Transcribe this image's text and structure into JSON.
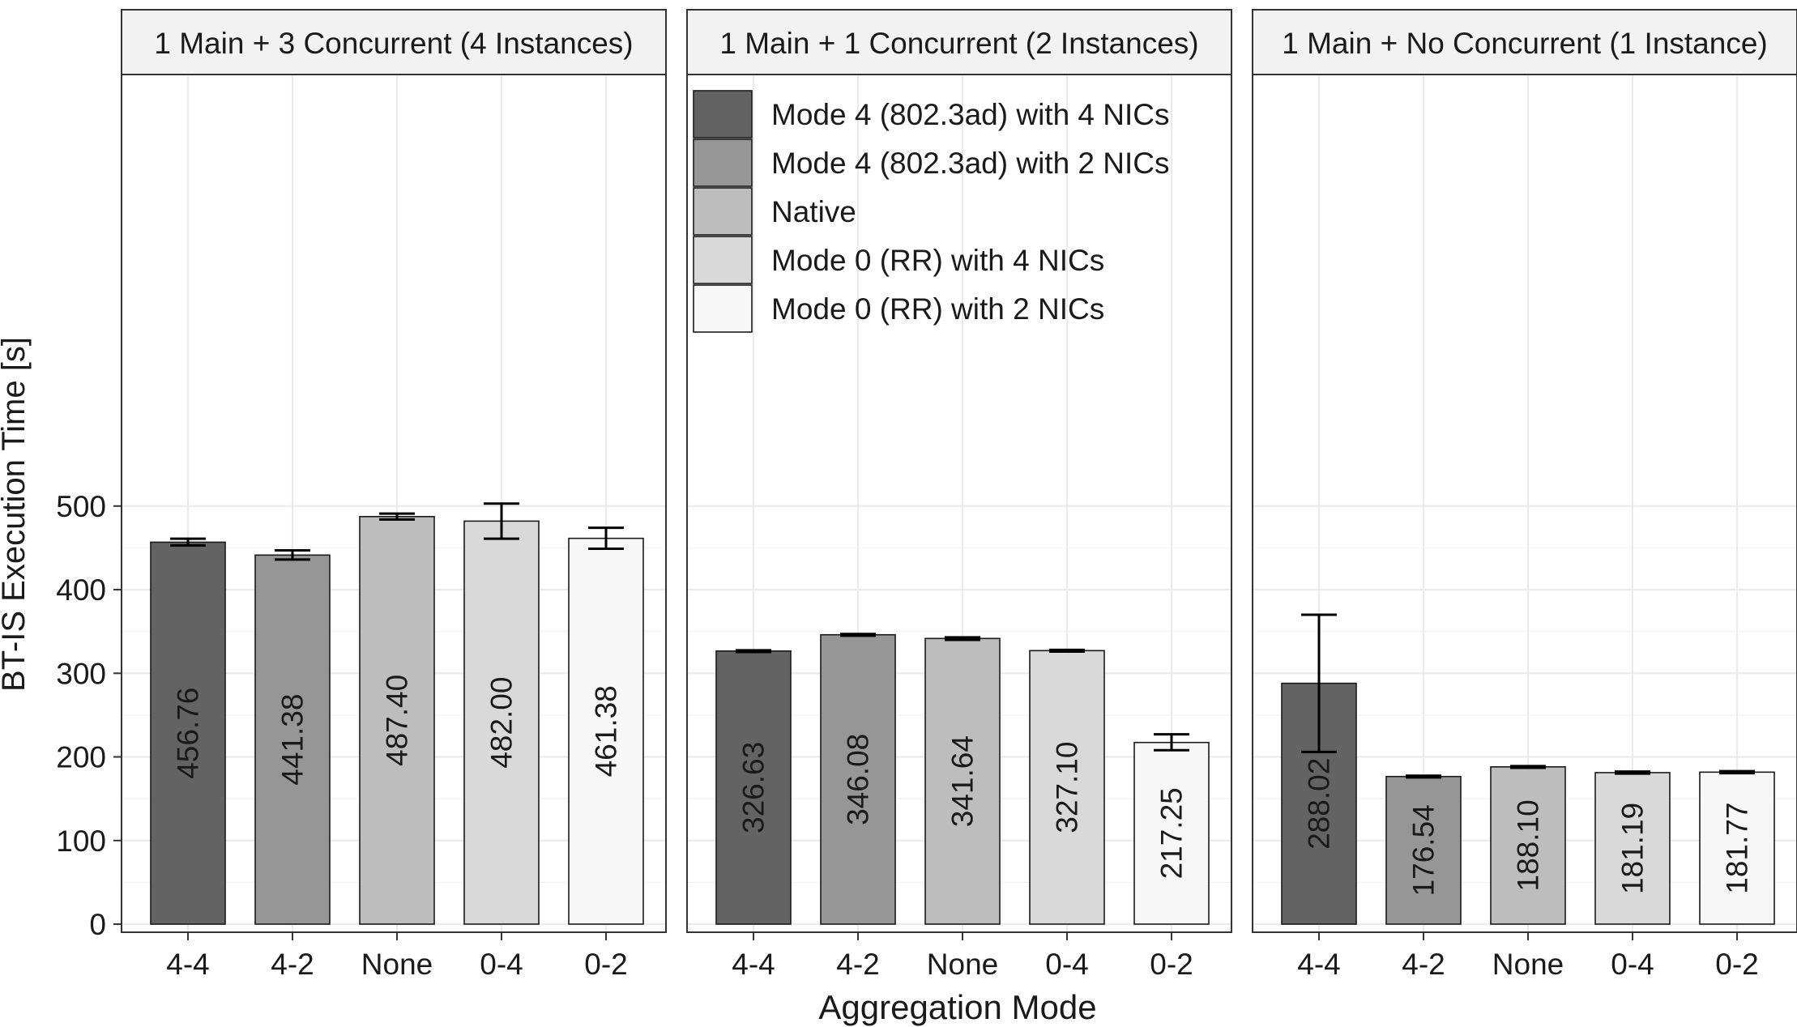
{
  "chart_data": {
    "type": "bar",
    "ylabel": "BT-IS Execution Time [s]",
    "xlabel": "Aggregation Mode",
    "ylim": [
      0,
      520
    ],
    "yticks": [
      0,
      100,
      200,
      300,
      400,
      500
    ],
    "categories": [
      "4-4",
      "4-2",
      "None",
      "0-4",
      "0-2"
    ],
    "legend": {
      "placement": "top-left of middle panel",
      "entries": [
        {
          "label": "Mode 4 (802.3ad) with 4 NICs",
          "color": "#636363"
        },
        {
          "label": "Mode 4 (802.3ad) with 2 NICs",
          "color": "#969696"
        },
        {
          "label": "Native",
          "color": "#bdbdbd"
        },
        {
          "label": "Mode 0 (RR) with 4 NICs",
          "color": "#d9d9d9"
        },
        {
          "label": "Mode 0 (RR) with 2 NICs",
          "color": "#f7f7f7"
        }
      ]
    },
    "grid": true,
    "panels": [
      {
        "title": "1 Main + 3 Concurrent (4 Instances)",
        "values": [
          456.76,
          441.38,
          487.4,
          482.0,
          461.38
        ],
        "labels": [
          "456.76",
          "441.38",
          "487.40",
          "482.00",
          "461.38"
        ],
        "err_low": [
          453,
          436,
          484,
          461,
          449
        ],
        "err_high": [
          461,
          447,
          491,
          503,
          474
        ]
      },
      {
        "title": "1 Main + 1 Concurrent (2 Instances)",
        "values": [
          326.63,
          346.08,
          341.64,
          327.1,
          217.25
        ],
        "labels": [
          "326.63",
          "346.08",
          "341.64",
          "327.10",
          "217.25"
        ],
        "err_low": [
          325.5,
          345,
          340,
          326,
          208
        ],
        "err_high": [
          327.5,
          347,
          343,
          328,
          227
        ]
      },
      {
        "title": "1 Main + No Concurrent (1 Instance)",
        "values": [
          288.02,
          176.54,
          188.1,
          181.19,
          181.77
        ],
        "labels": [
          "288.02",
          "176.54",
          "188.10",
          "181.19",
          "181.77"
        ],
        "err_low": [
          206,
          175.5,
          187,
          180,
          180.5
        ],
        "err_high": [
          370,
          177.5,
          189,
          182.5,
          183
        ]
      }
    ]
  }
}
